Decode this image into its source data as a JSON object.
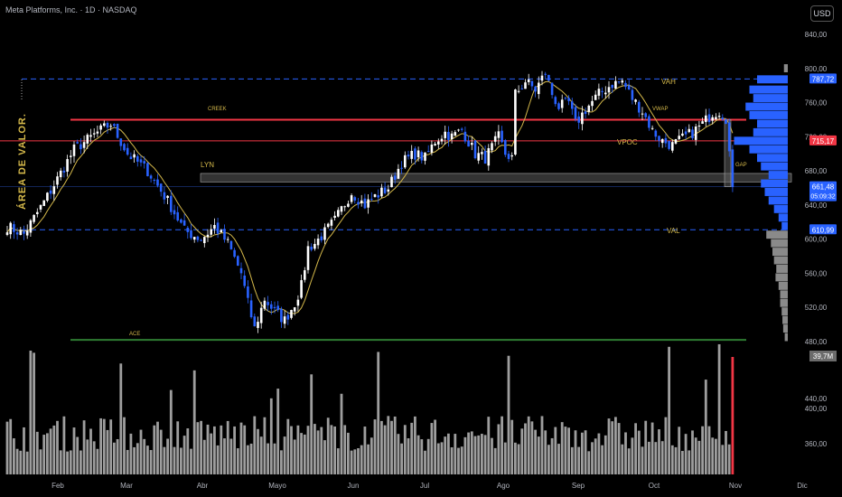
{
  "header": {
    "symbol_title": "Meta Platforms, Inc. · 1D · NASDAQ",
    "currency": "USD"
  },
  "colors": {
    "up": "#ffffff",
    "down": "#2962ff",
    "vwap": "#d4b84a",
    "creek": "#f23645",
    "value_area": "#2962ff",
    "ace": "#2e7d32",
    "volume": "#9e9e9e",
    "last_volume": "#f23645",
    "profile": "#2962ff",
    "profile_grey": "#8a8a8a",
    "lyn_zone": "#5d5d5d"
  },
  "chart_data": {
    "type": "candlestick",
    "price_axis": {
      "ticks": [
        "840,00",
        "800,00",
        "760,00",
        "720,00",
        "680,00",
        "640,00",
        "600,00",
        "560,00",
        "520,00",
        "480,00"
      ],
      "range": [
        470,
        850
      ]
    },
    "volume_axis": {
      "ticks": [
        "440,00",
        "400,00",
        "360,00"
      ]
    },
    "time_axis": [
      "Feb",
      "Mar",
      "Abr",
      "Mayo",
      "Jun",
      "Jul",
      "Ago",
      "Sep",
      "Oct",
      "Nov",
      "Dic"
    ],
    "price_labels": [
      {
        "name": "VAH",
        "value": "787,72",
        "color": "#2962ff"
      },
      {
        "name": "Creek",
        "value": "715,17",
        "color": "#f23645"
      },
      {
        "name": "Last",
        "value": "661,48",
        "sub": "05:09:32",
        "color": "#2962ff"
      },
      {
        "name": "VAL",
        "value": "610,99",
        "color": "#2962ff"
      }
    ],
    "volume_label": "39,7M",
    "levels": {
      "vah": 787.72,
      "creek_upper": 740,
      "creek_lower": 715.17,
      "val": 610.99,
      "ace": 482,
      "lyn_zone": [
        667,
        677
      ]
    },
    "annotations": {
      "creek": "CREEK",
      "lyn": "LYN",
      "ace": "ACE",
      "vah": "VAH",
      "val": "VAL",
      "vpoc": "VPOC",
      "vwap": "VWAP",
      "gap": "GAP",
      "area_valor": "ÁREA DE VALOR."
    },
    "anchors": [
      [
        0,
        615
      ],
      [
        5,
        606
      ],
      [
        12,
        650
      ],
      [
        20,
        705
      ],
      [
        27,
        725
      ],
      [
        31,
        735
      ],
      [
        36,
        700
      ],
      [
        42,
        680
      ],
      [
        48,
        645
      ],
      [
        53,
        610
      ],
      [
        58,
        600
      ],
      [
        62,
        615
      ],
      [
        66,
        595
      ],
      [
        70,
        560
      ],
      [
        72,
        525
      ],
      [
        74,
        495
      ],
      [
        77,
        530
      ],
      [
        80,
        515
      ],
      [
        83,
        505
      ],
      [
        86,
        525
      ],
      [
        88,
        545
      ],
      [
        90,
        590
      ],
      [
        92,
        595
      ],
      [
        95,
        608
      ],
      [
        98,
        622
      ],
      [
        100,
        635
      ],
      [
        103,
        655
      ],
      [
        107,
        640
      ],
      [
        110,
        650
      ],
      [
        114,
        660
      ],
      [
        118,
        690
      ],
      [
        122,
        700
      ],
      [
        125,
        695
      ],
      [
        128,
        715
      ],
      [
        131,
        725
      ],
      [
        133,
        720
      ],
      [
        136,
        728
      ],
      [
        140,
        700
      ],
      [
        143,
        695
      ],
      [
        147,
        720
      ],
      [
        149,
        700
      ],
      [
        151,
        695
      ],
      [
        152,
        770
      ],
      [
        155,
        785
      ],
      [
        158,
        775
      ],
      [
        161,
        795
      ],
      [
        163,
        770
      ],
      [
        165,
        755
      ],
      [
        168,
        760
      ],
      [
        170,
        735
      ],
      [
        173,
        752
      ],
      [
        177,
        770
      ],
      [
        181,
        782
      ],
      [
        184,
        785
      ],
      [
        187,
        765
      ],
      [
        190,
        750
      ],
      [
        193,
        727
      ],
      [
        196,
        715
      ],
      [
        199,
        710
      ],
      [
        202,
        718
      ],
      [
        205,
        725
      ],
      [
        208,
        735
      ],
      [
        211,
        748
      ],
      [
        213,
        750
      ],
      [
        215,
        742
      ],
      [
        217,
        661
      ]
    ],
    "volume_profile_peaks": [
      [
        800,
        5
      ],
      [
        787,
        40
      ],
      [
        775,
        50
      ],
      [
        765,
        45
      ],
      [
        755,
        55
      ],
      [
        745,
        50
      ],
      [
        735,
        40
      ],
      [
        725,
        45
      ],
      [
        715,
        70
      ],
      [
        705,
        50
      ],
      [
        695,
        40
      ],
      [
        685,
        35
      ],
      [
        675,
        25
      ],
      [
        665,
        35
      ],
      [
        655,
        30
      ],
      [
        645,
        25
      ],
      [
        635,
        18
      ],
      [
        625,
        12
      ],
      [
        615,
        8
      ],
      [
        605,
        28
      ],
      [
        595,
        22
      ],
      [
        585,
        20
      ],
      [
        575,
        18
      ],
      [
        565,
        15
      ],
      [
        555,
        16
      ],
      [
        545,
        12
      ],
      [
        535,
        10
      ],
      [
        525,
        10
      ],
      [
        515,
        8
      ],
      [
        505,
        7
      ],
      [
        495,
        6
      ],
      [
        485,
        4
      ]
    ]
  }
}
